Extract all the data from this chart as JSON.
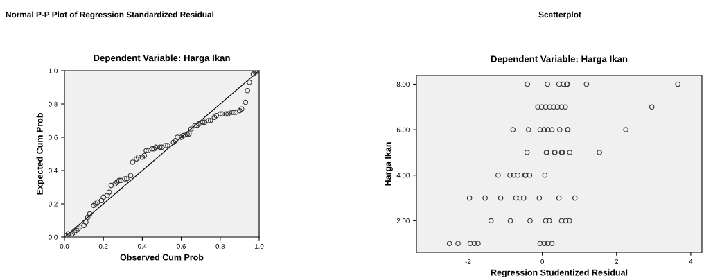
{
  "chart_data": [
    {
      "type": "scatter",
      "title": "Normal P-P Plot of Regression Standardized Residual",
      "subtitle": "Dependent Variable: Harga Ikan",
      "xlabel": "Observed Cum Prob",
      "ylabel": "Expected Cum Prob",
      "xlim": [
        0,
        1
      ],
      "ylim": [
        0,
        1
      ],
      "xticks": [
        {
          "value": 0,
          "label": "0.0"
        },
        {
          "value": 0.2,
          "label": "0.2"
        },
        {
          "value": 0.4,
          "label": "0.4"
        },
        {
          "value": 0.6,
          "label": "0.6"
        },
        {
          "value": 0.8,
          "label": "0.8"
        },
        {
          "value": 1,
          "label": "1.0"
        }
      ],
      "yticks": [
        {
          "value": 0,
          "label": "0.0"
        },
        {
          "value": 0.2,
          "label": "0.2"
        },
        {
          "value": 0.4,
          "label": "0.4"
        },
        {
          "value": 0.6,
          "label": "0.6"
        },
        {
          "value": 0.8,
          "label": "0.8"
        },
        {
          "value": 1,
          "label": "1.0"
        }
      ],
      "grid": false,
      "legend": false,
      "marker": "circle",
      "series": [
        {
          "color": "#333333",
          "x": [
            0.01,
            0.02,
            0.04,
            0.05,
            0.06,
            0.07,
            0.08,
            0.1,
            0.11,
            0.12,
            0.13,
            0.15,
            0.16,
            0.17,
            0.19,
            0.2,
            0.22,
            0.23,
            0.24,
            0.26,
            0.27,
            0.28,
            0.29,
            0.31,
            0.32,
            0.34,
            0.35,
            0.37,
            0.38,
            0.4,
            0.41,
            0.42,
            0.43,
            0.45,
            0.46,
            0.47,
            0.49,
            0.5,
            0.52,
            0.53,
            0.56,
            0.57,
            0.58,
            0.6,
            0.61,
            0.63,
            0.64,
            0.65,
            0.67,
            0.68,
            0.69,
            0.71,
            0.72,
            0.74,
            0.75,
            0.77,
            0.78,
            0.8,
            0.81,
            0.83,
            0.84,
            0.86,
            0.87,
            0.88,
            0.9,
            0.91,
            0.93,
            0.94,
            0.95,
            0.97,
            0.98,
            0.99
          ],
          "values": [
            0.01,
            0.02,
            0.02,
            0.03,
            0.04,
            0.05,
            0.06,
            0.07,
            0.09,
            0.12,
            0.14,
            0.19,
            0.2,
            0.21,
            0.22,
            0.24,
            0.25,
            0.27,
            0.31,
            0.32,
            0.33,
            0.34,
            0.34,
            0.35,
            0.35,
            0.37,
            0.45,
            0.47,
            0.48,
            0.48,
            0.49,
            0.52,
            0.52,
            0.53,
            0.53,
            0.54,
            0.54,
            0.54,
            0.55,
            0.55,
            0.57,
            0.58,
            0.6,
            0.6,
            0.61,
            0.62,
            0.62,
            0.65,
            0.67,
            0.67,
            0.68,
            0.69,
            0.69,
            0.7,
            0.7,
            0.72,
            0.73,
            0.74,
            0.74,
            0.74,
            0.74,
            0.75,
            0.75,
            0.75,
            0.76,
            0.77,
            0.81,
            0.88,
            0.93,
            0.98,
            0.99,
            1.0
          ]
        },
        {
          "type": "line",
          "marker": "none",
          "color": "#000000",
          "x": [
            0,
            1
          ],
          "values": [
            0,
            1
          ]
        }
      ]
    },
    {
      "type": "scatter",
      "title": "Scatterplot",
      "subtitle": "Dependent Variable: Harga Ikan",
      "xlabel": "Regression Studentized Residual",
      "ylabel": "Harga Ikan",
      "xlim": [
        -3.39,
        4.3
      ],
      "ylim": [
        0.61,
        8.38
      ],
      "xticks": [
        {
          "value": -2,
          "label": "-2"
        },
        0,
        2,
        4
      ],
      "yticks": [
        {
          "value": 2,
          "label": "2.00"
        },
        {
          "value": 4,
          "label": "4.00"
        },
        {
          "value": 6,
          "label": "6.00"
        },
        {
          "value": 8,
          "label": "8.00"
        }
      ],
      "grid": false,
      "legend": false,
      "marker": "circle",
      "series": [
        {
          "color": "#333333",
          "x": [
            -0.4,
            0.14,
            0.45,
            0.57,
            0.66,
            0.67,
            1.19,
            3.65,
            -0.12,
            -0.02,
            0.09,
            0.2,
            0.31,
            0.41,
            0.52,
            0.62,
            2.95,
            -0.79,
            -0.37,
            -0.06,
            0.05,
            0.15,
            0.26,
            0.47,
            0.68,
            0.69,
            2.25,
            -0.41,
            0.11,
            0.12,
            0.33,
            0.34,
            0.52,
            0.54,
            0.74,
            1.54,
            -1.19,
            -0.87,
            -0.77,
            -0.66,
            -0.47,
            -0.45,
            -0.34,
            0.07,
            -1.96,
            -1.54,
            -1.12,
            -0.71,
            -0.6,
            -0.5,
            -0.08,
            0.45,
            0.88,
            -1.38,
            -0.86,
            -0.33,
            0.09,
            0.19,
            0.52,
            0.63,
            0.73,
            -2.5,
            -2.27,
            -1.94,
            -1.83,
            -1.73,
            -0.06,
            0.05,
            0.15,
            0.26
          ],
          "values": [
            8,
            8,
            8,
            8,
            8,
            8,
            8,
            8,
            7,
            7,
            7,
            7,
            7,
            7,
            7,
            7,
            7,
            6,
            6,
            6,
            6,
            6,
            6,
            6,
            6,
            6,
            6,
            5,
            5,
            5,
            5,
            5,
            5,
            5,
            5,
            5,
            4,
            4,
            4,
            4,
            4,
            4,
            4,
            4,
            3,
            3,
            3,
            3,
            3,
            3,
            3,
            3,
            3,
            2,
            2,
            2,
            2,
            2,
            2,
            2,
            2,
            1,
            1,
            1,
            1,
            1,
            1,
            1,
            1,
            1
          ]
        }
      ]
    }
  ]
}
